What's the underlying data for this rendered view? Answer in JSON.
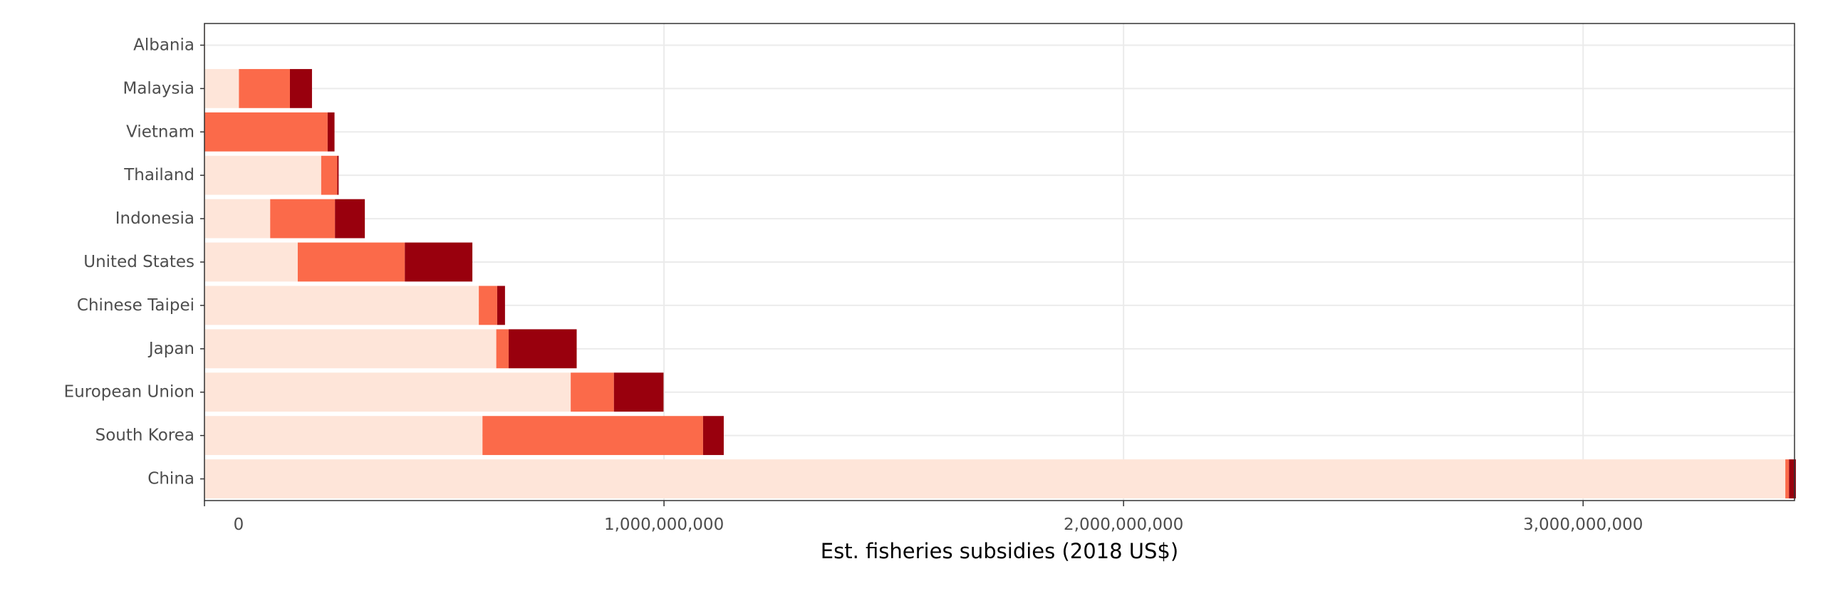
{
  "chart_data": {
    "type": "bar",
    "orientation": "horizontal",
    "stacked": true,
    "title": "",
    "xlabel": "Est. fisheries subsidies (2018 US$)",
    "ylabel": "",
    "xlim": [
      0,
      3460000000
    ],
    "x_ticks": [
      0,
      1000000000,
      2000000000,
      3000000000
    ],
    "x_tick_labels": [
      "0",
      "1,000,000,000",
      "2,000,000,000",
      "3,000,000,000"
    ],
    "grid": true,
    "legend": "none",
    "categories": [
      "China",
      "South Korea",
      "European Union",
      "Japan",
      "Chinese Taipei",
      "United States",
      "Indonesia",
      "Thailand",
      "Vietnam",
      "Malaysia",
      "Albania"
    ],
    "series": [
      {
        "color": "#fee5d9",
        "values": [
          3440000000,
          605000000,
          797000000,
          635000000,
          597000000,
          203000000,
          143000000,
          254000000,
          0,
          75000000,
          1500000
        ]
      },
      {
        "color": "#fb6a4a",
        "values": [
          8000000,
          480000000,
          94000000,
          27000000,
          40000000,
          233000000,
          141000000,
          35000000,
          268000000,
          111000000,
          0
        ]
      },
      {
        "color": "#99000d",
        "values": [
          15000000,
          45000000,
          108000000,
          148000000,
          17000000,
          147000000,
          65000000,
          3000000,
          15000000,
          48000000,
          0
        ]
      }
    ]
  }
}
